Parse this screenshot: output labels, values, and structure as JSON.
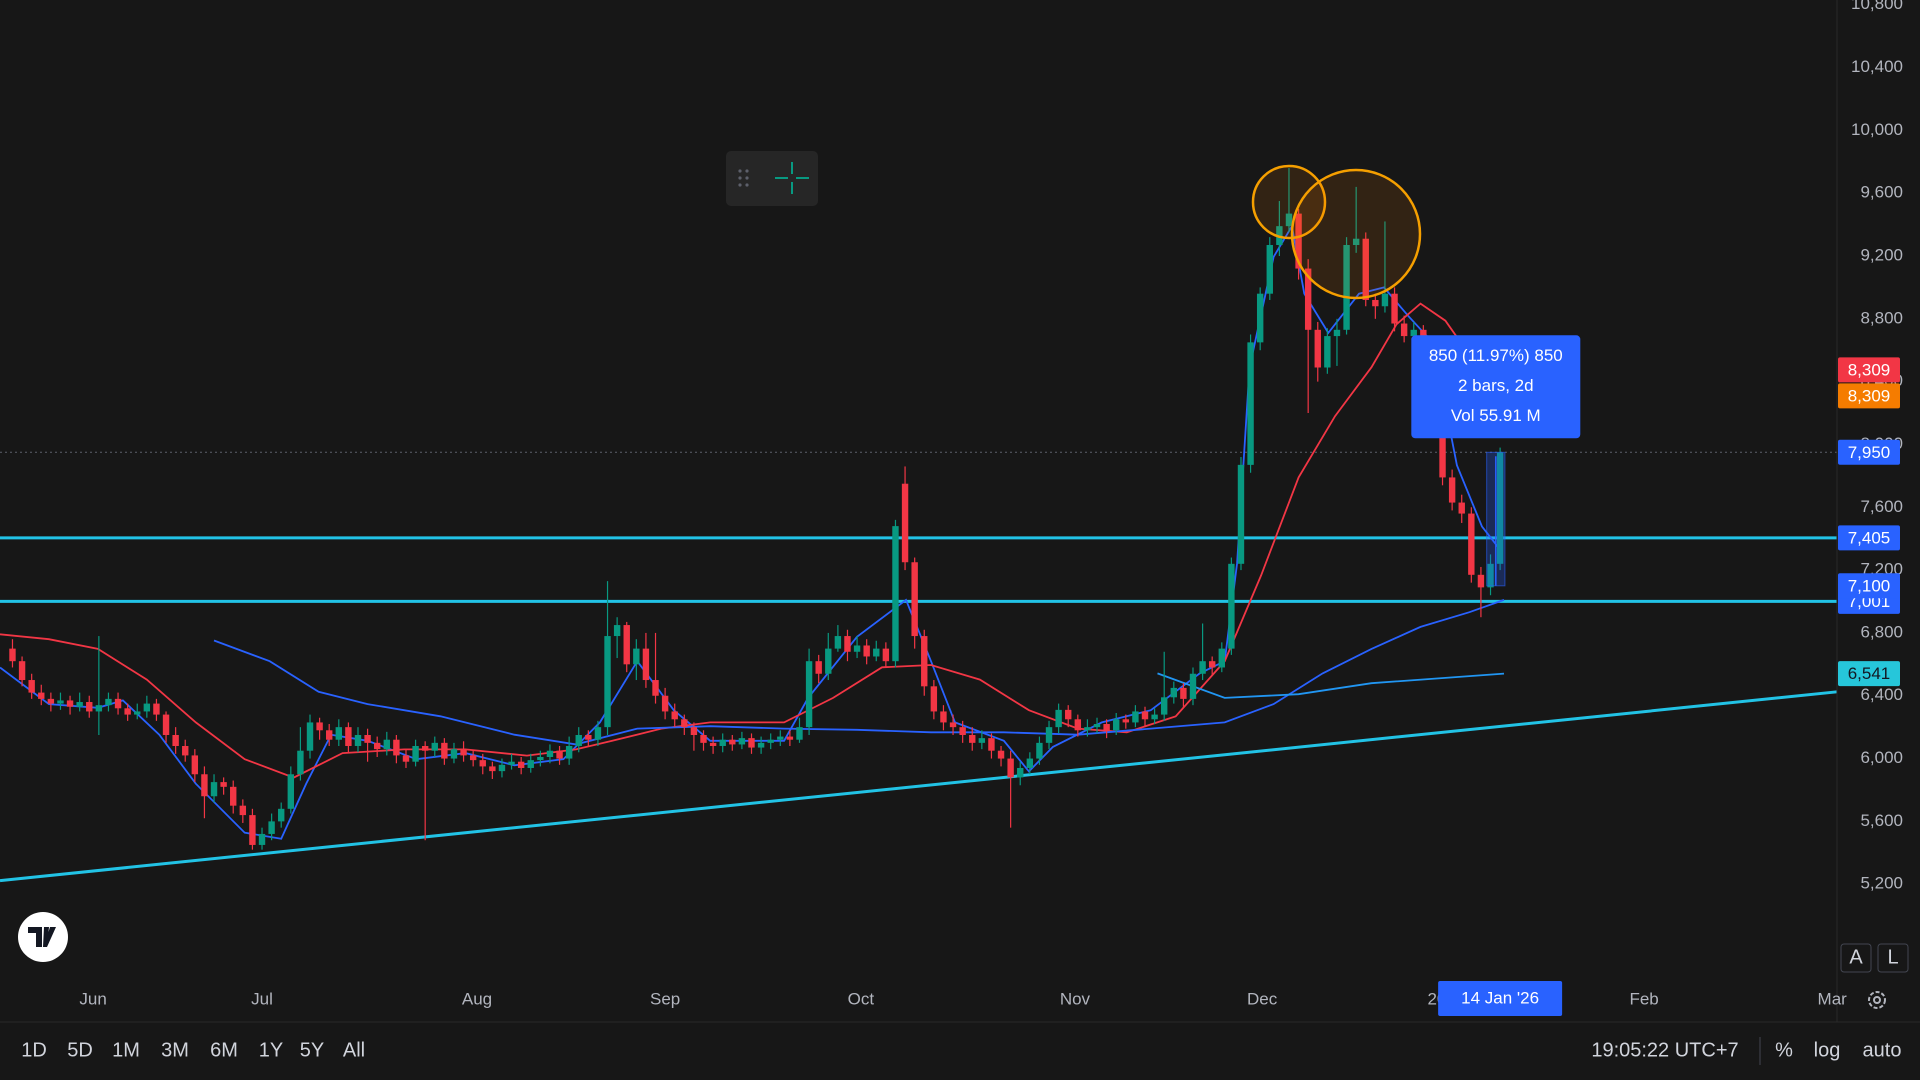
{
  "chart_data": {
    "type": "candlestick",
    "up_color": "#089981",
    "down_color": "#f23645",
    "xlim": [
      -1.3,
      190.1
    ],
    "xticks": [
      {
        "value": 8.4,
        "label": "Jun"
      },
      {
        "value": 26,
        "label": "Jul"
      },
      {
        "value": 48.4,
        "label": "Aug"
      },
      {
        "value": 68,
        "label": "Sep"
      },
      {
        "value": 88.4,
        "label": "Oct"
      },
      {
        "value": 110.7,
        "label": "Nov"
      },
      {
        "value": 130.2,
        "label": "Dec"
      },
      {
        "value": 149.4,
        "label": "2026"
      },
      {
        "value": 170,
        "label": "Feb"
      },
      {
        "value": 189.6,
        "label": "Mar"
      }
    ],
    "ylim": [
      4590,
      10830
    ],
    "yticks": [
      {
        "value": 5200,
        "label": "5,200"
      },
      {
        "value": 5600,
        "label": "5,600"
      },
      {
        "value": 6000,
        "label": "6,000"
      },
      {
        "value": 6400,
        "label": "6,400"
      },
      {
        "value": 6800,
        "label": "6,800"
      },
      {
        "value": 7200,
        "label": "7,200"
      },
      {
        "value": 7600,
        "label": "7,600"
      },
      {
        "value": 8000,
        "label": "8,000"
      },
      {
        "value": 8400,
        "label": "8,400"
      },
      {
        "value": 8800,
        "label": "8,800"
      },
      {
        "value": 9200,
        "label": "9,200"
      },
      {
        "value": 9600,
        "label": "9,600"
      },
      {
        "value": 10000,
        "label": "10,000"
      },
      {
        "value": 10400,
        "label": "10,400"
      },
      {
        "value": 10800,
        "label": "10,800"
      }
    ],
    "ohlc": [
      [
        6700,
        6760,
        6580,
        6620
      ],
      [
        6620,
        6650,
        6460,
        6500
      ],
      [
        6500,
        6540,
        6380,
        6420
      ],
      [
        6420,
        6470,
        6340,
        6380
      ],
      [
        6380,
        6420,
        6300,
        6350
      ],
      [
        6350,
        6420,
        6310,
        6370
      ],
      [
        6370,
        6400,
        6280,
        6330
      ],
      [
        6330,
        6420,
        6300,
        6360
      ],
      [
        6360,
        6400,
        6260,
        6300
      ],
      [
        6300,
        6780,
        6150,
        6340
      ],
      [
        6340,
        6420,
        6300,
        6380
      ],
      [
        6380,
        6420,
        6280,
        6320
      ],
      [
        6320,
        6350,
        6240,
        6280
      ],
      [
        6280,
        6350,
        6250,
        6300
      ],
      [
        6300,
        6400,
        6260,
        6350
      ],
      [
        6350,
        6380,
        6240,
        6280
      ],
      [
        6280,
        6300,
        6100,
        6150
      ],
      [
        6150,
        6200,
        6030,
        6080
      ],
      [
        6080,
        6120,
        5980,
        6020
      ],
      [
        6020,
        6060,
        5850,
        5900
      ],
      [
        5900,
        5950,
        5620,
        5760
      ],
      [
        5760,
        5900,
        5720,
        5850
      ],
      [
        5850,
        5880,
        5770,
        5820
      ],
      [
        5820,
        5860,
        5650,
        5700
      ],
      [
        5700,
        5740,
        5590,
        5640
      ],
      [
        5640,
        5680,
        5420,
        5450
      ],
      [
        5450,
        5560,
        5420,
        5520
      ],
      [
        5520,
        5650,
        5480,
        5600
      ],
      [
        5600,
        5720,
        5560,
        5680
      ],
      [
        5680,
        5950,
        5650,
        5900
      ],
      [
        5900,
        6200,
        5860,
        6050
      ],
      [
        6050,
        6280,
        6000,
        6230
      ],
      [
        6230,
        6260,
        6120,
        6180
      ],
      [
        6180,
        6220,
        6080,
        6120
      ],
      [
        6120,
        6250,
        6080,
        6200
      ],
      [
        6200,
        6230,
        6040,
        6080
      ],
      [
        6080,
        6200,
        6040,
        6150
      ],
      [
        6150,
        6190,
        5980,
        6100
      ],
      [
        6100,
        6140,
        6010,
        6060
      ],
      [
        6060,
        6170,
        6020,
        6120
      ],
      [
        6120,
        6150,
        5970,
        6020
      ],
      [
        6020,
        6060,
        5940,
        5980
      ],
      [
        5980,
        6120,
        5950,
        6080
      ],
      [
        6080,
        6110,
        5480,
        6050
      ],
      [
        6050,
        6140,
        6010,
        6100
      ],
      [
        6100,
        6130,
        5960,
        6000
      ],
      [
        6000,
        6100,
        5970,
        6060
      ],
      [
        6060,
        6110,
        5980,
        6020
      ],
      [
        6020,
        6050,
        5950,
        5990
      ],
      [
        5990,
        6030,
        5900,
        5950
      ],
      [
        5950,
        5980,
        5870,
        5920
      ],
      [
        5920,
        6000,
        5880,
        5960
      ],
      [
        5960,
        6030,
        5930,
        5980
      ],
      [
        5980,
        6010,
        5900,
        5940
      ],
      [
        5940,
        6030,
        5910,
        5990
      ],
      [
        5990,
        6050,
        5950,
        6010
      ],
      [
        6010,
        6090,
        5970,
        6050
      ],
      [
        6050,
        6080,
        5960,
        6000
      ],
      [
        6000,
        6140,
        5960,
        6080
      ],
      [
        6080,
        6200,
        6040,
        6150
      ],
      [
        6150,
        6180,
        6080,
        6120
      ],
      [
        6120,
        6240,
        6080,
        6200
      ],
      [
        6200,
        7130,
        6150,
        6780
      ],
      [
        6780,
        6900,
        6640,
        6850
      ],
      [
        6850,
        6870,
        6550,
        6600
      ],
      [
        6600,
        6760,
        6500,
        6700
      ],
      [
        6700,
        6800,
        6450,
        6500
      ],
      [
        6500,
        6800,
        6350,
        6400
      ],
      [
        6400,
        6450,
        6250,
        6300
      ],
      [
        6300,
        6350,
        6200,
        6250
      ],
      [
        6250,
        6280,
        6150,
        6200
      ],
      [
        6200,
        6230,
        6050,
        6150
      ],
      [
        6150,
        6180,
        6050,
        6100
      ],
      [
        6100,
        6140,
        6030,
        6080
      ],
      [
        6080,
        6160,
        6040,
        6120
      ],
      [
        6120,
        6150,
        6050,
        6090
      ],
      [
        6090,
        6170,
        6060,
        6130
      ],
      [
        6130,
        6160,
        6030,
        6070
      ],
      [
        6070,
        6140,
        6030,
        6100
      ],
      [
        6100,
        6160,
        6060,
        6120
      ],
      [
        6120,
        6180,
        6080,
        6140
      ],
      [
        6140,
        6180,
        6080,
        6120
      ],
      [
        6120,
        6260,
        6100,
        6200
      ],
      [
        6200,
        6700,
        6150,
        6620
      ],
      [
        6620,
        6660,
        6480,
        6540
      ],
      [
        6540,
        6800,
        6500,
        6700
      ],
      [
        6700,
        6850,
        6680,
        6780
      ],
      [
        6780,
        6820,
        6620,
        6680
      ],
      [
        6680,
        6780,
        6640,
        6720
      ],
      [
        6720,
        6760,
        6600,
        6650
      ],
      [
        6650,
        6750,
        6620,
        6700
      ],
      [
        6700,
        6740,
        6580,
        6620
      ],
      [
        6620,
        7520,
        6580,
        7480
      ],
      [
        7750,
        7860,
        7200,
        7250
      ],
      [
        7250,
        7280,
        6700,
        6780
      ],
      [
        6780,
        6820,
        6400,
        6460
      ],
      [
        6460,
        6500,
        6250,
        6300
      ],
      [
        6300,
        6340,
        6180,
        6230
      ],
      [
        6230,
        6280,
        6150,
        6200
      ],
      [
        6200,
        6240,
        6100,
        6150
      ],
      [
        6150,
        6200,
        6050,
        6100
      ],
      [
        6100,
        6180,
        6060,
        6130
      ],
      [
        6130,
        6160,
        6000,
        6050
      ],
      [
        6050,
        6080,
        5950,
        6000
      ],
      [
        6000,
        6050,
        5560,
        5880
      ],
      [
        5880,
        5980,
        5830,
        5940
      ],
      [
        5940,
        6040,
        5900,
        6000
      ],
      [
        6000,
        6140,
        5960,
        6100
      ],
      [
        6100,
        6240,
        6060,
        6200
      ],
      [
        6200,
        6350,
        6160,
        6310
      ],
      [
        6310,
        6340,
        6200,
        6250
      ],
      [
        6250,
        6280,
        6140,
        6180
      ],
      [
        6180,
        6250,
        6140,
        6200
      ],
      [
        6200,
        6260,
        6160,
        6220
      ],
      [
        6220,
        6250,
        6130,
        6180
      ],
      [
        6180,
        6290,
        6150,
        6250
      ],
      [
        6250,
        6280,
        6190,
        6230
      ],
      [
        6230,
        6340,
        6200,
        6300
      ],
      [
        6300,
        6330,
        6200,
        6250
      ],
      [
        6250,
        6320,
        6220,
        6280
      ],
      [
        6280,
        6680,
        6240,
        6390
      ],
      [
        6390,
        6490,
        6350,
        6450
      ],
      [
        6450,
        6480,
        6330,
        6380
      ],
      [
        6380,
        6580,
        6340,
        6540
      ],
      [
        6540,
        6860,
        6500,
        6620
      ],
      [
        6620,
        6650,
        6530,
        6580
      ],
      [
        6580,
        6740,
        6550,
        6700
      ],
      [
        6700,
        7280,
        6660,
        7240
      ],
      [
        7240,
        7920,
        7200,
        7870
      ],
      [
        7870,
        8700,
        7820,
        8650
      ],
      [
        8650,
        9000,
        8600,
        8960
      ],
      [
        8960,
        9320,
        8920,
        9270
      ],
      [
        9270,
        9550,
        9200,
        9390
      ],
      [
        9390,
        9760,
        9350,
        9470
      ],
      [
        9470,
        9500,
        9050,
        9120
      ],
      [
        9120,
        9180,
        8200,
        8730
      ],
      [
        8730,
        8780,
        8400,
        8490
      ],
      [
        8490,
        8740,
        8450,
        8690
      ],
      [
        8690,
        8800,
        8500,
        8730
      ],
      [
        8730,
        9320,
        8700,
        9270
      ],
      [
        9270,
        9640,
        9220,
        9310
      ],
      [
        9310,
        9350,
        8880,
        8920
      ],
      [
        8920,
        8960,
        8800,
        8880
      ],
      [
        8880,
        9420,
        8840,
        8960
      ],
      [
        8960,
        9000,
        8720,
        8770
      ],
      [
        8770,
        8820,
        8650,
        8690
      ],
      [
        8690,
        8780,
        8640,
        8730
      ],
      [
        8730,
        8760,
        8450,
        8570
      ],
      [
        8570,
        8620,
        8120,
        8180
      ],
      [
        8180,
        8220,
        7740,
        7790
      ],
      [
        7790,
        7840,
        7580,
        7630
      ],
      [
        7630,
        7680,
        7500,
        7560
      ],
      [
        7560,
        7600,
        7120,
        7170
      ],
      [
        7170,
        7220,
        6900,
        7090
      ],
      [
        7090,
        7300,
        7040,
        7240
      ],
      [
        7240,
        7980,
        7200,
        7950
      ]
    ],
    "lines": [
      {
        "color": "#2962ff",
        "x": [
          -1.3,
          3.8,
          8.9,
          11.5,
          15.3,
          19.1,
          24.2,
          28,
          30.6,
          33.2,
          37,
          42.1,
          47.2,
          52.3,
          57.4,
          61.2,
          65.1,
          68.9,
          72.7,
          80.4,
          82.9,
          88,
          93.1,
          95.7,
          98.2,
          103.3,
          105.9,
          108.4,
          113.5,
          118.6,
          123.7,
          126.3,
          127.6,
          128.9,
          131.4,
          133.3,
          134.6,
          137.1,
          140.3,
          142.9,
          145.4,
          148,
          150.5,
          153.1,
          155.1
        ],
        "values": [
          6580,
          6347,
          6323,
          6370,
          6152,
          5840,
          5528,
          5489,
          5840,
          6152,
          6113,
          5996,
          6035,
          5957,
          5996,
          6230,
          6620,
          6308,
          6113,
          6113,
          6386,
          6776,
          7010,
          6620,
          6230,
          6113,
          5918,
          6074,
          6230,
          6308,
          6542,
          6620,
          7244,
          8492,
          9194,
          9389,
          8960,
          8710,
          8960,
          9000,
          8820,
          8648,
          7868,
          7478,
          7322
        ]
      },
      {
        "color": "#f23645",
        "x": [
          -1.3,
          3.8,
          8.9,
          14,
          19.1,
          24.2,
          29.3,
          34.4,
          40.8,
          47.2,
          53.6,
          58.7,
          62.5,
          67.6,
          72.7,
          80.4,
          85.5,
          90.6,
          95.7,
          100.8,
          105.9,
          111,
          116.1,
          121.2,
          126.3,
          130.1,
          134,
          137.8,
          141.6,
          144.2,
          146.7,
          149.3,
          151.8,
          155.1
        ],
        "values": [
          6791,
          6760,
          6698,
          6503,
          6230,
          5996,
          5879,
          6035,
          6058,
          6058,
          6019,
          6058,
          6113,
          6191,
          6230,
          6230,
          6386,
          6581,
          6596,
          6503,
          6308,
          6191,
          6167,
          6269,
          6620,
          7166,
          7790,
          8180,
          8492,
          8765,
          8897,
          8788,
          8570,
          8309
        ]
      },
      {
        "color": "#2962ff",
        "x": [
          21,
          26.8,
          31.9,
          37,
          44.6,
          52.3,
          58.7,
          65.1,
          72.7,
          80.4,
          88,
          95.7,
          103.3,
          111,
          118.6,
          126.3,
          131.4,
          136.5,
          141.6,
          146.7,
          151.8,
          155.4
        ],
        "values": [
          6752,
          6620,
          6425,
          6347,
          6269,
          6152,
          6090,
          6191,
          6206,
          6191,
          6183,
          6167,
          6167,
          6152,
          6191,
          6230,
          6347,
          6542,
          6698,
          6838,
          6932,
          7010
        ]
      },
      {
        "color": "#2196f3",
        "x": [
          119.3,
          126.3,
          134,
          141.6,
          155.4
        ],
        "values": [
          6542,
          6386,
          6410,
          6480,
          6541
        ]
      }
    ],
    "horizontal_lines": [
      {
        "value": 7405,
        "color": "#22c3e6"
      },
      {
        "value": 7001,
        "color": "#22c3e6"
      }
    ],
    "trendline": {
      "color": "#22c3e6",
      "x": [
        -1.3,
        190.1
      ],
      "values": [
        5223,
        6425
      ]
    },
    "price_labels": [
      {
        "value": 8309,
        "label": "8,309",
        "color": "#f23645",
        "text_color": "#ffffff"
      },
      {
        "value": 8309,
        "label": "8,309",
        "color": "#f57c00",
        "text_color": "#ffffff"
      },
      {
        "value": 7950,
        "label": "7,950",
        "color": "#2962ff",
        "text_color": "#ffffff"
      },
      {
        "value": 7405,
        "label": "7,405",
        "color": "#2962ff",
        "text_color": "#ffffff"
      },
      {
        "value": 7001,
        "label": "7,001",
        "color": "#2962ff",
        "text_color": "#ffffff"
      },
      {
        "value": 7100,
        "label": "7,100",
        "color": "#2962ff",
        "text_color": "#ffffff"
      },
      {
        "value": 6541,
        "label": "6,541",
        "color": "#26c6da",
        "text_color": "#131722"
      }
    ],
    "measure": {
      "from": 7100,
      "to": 7950,
      "x": [
        153.6,
        155.5
      ],
      "lines": [
        "850 (11.97%) 850",
        "2 bars, 2d",
        "Vol 55.91 M"
      ]
    },
    "crosshair": {
      "value": 7950,
      "x": 155,
      "label": "14 Jan '26"
    }
  },
  "range_buttons": [
    "1D",
    "5D",
    "1M",
    "3M",
    "6M",
    "1Y",
    "5Y",
    "All"
  ],
  "status": {
    "time": "19:05:22 UTC+7",
    "percent": "%",
    "log": "log",
    "auto": "auto"
  },
  "scale_buttons": [
    "A",
    "L"
  ]
}
